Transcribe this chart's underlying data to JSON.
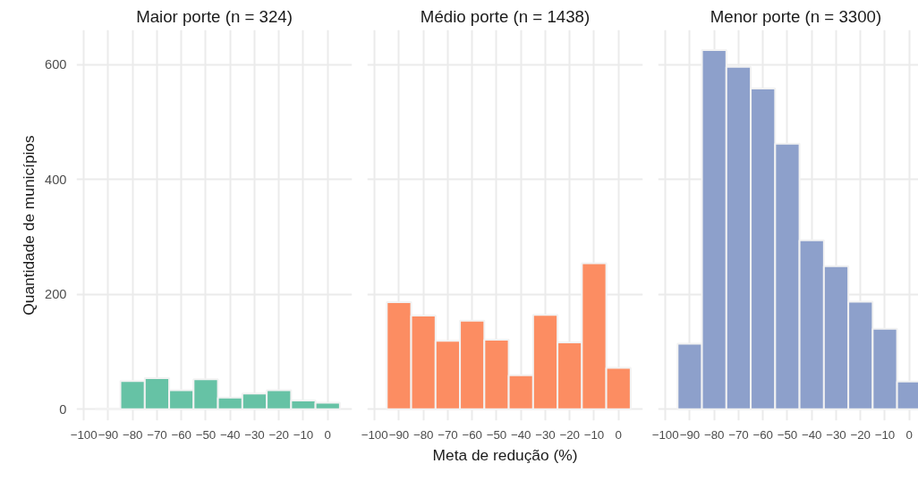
{
  "chart_data": [
    {
      "type": "histogram",
      "title": "Maior porte (n = 324)",
      "ylabel": "Quantidade de municípios",
      "bins": [
        -95,
        -85,
        -75,
        -65,
        -55,
        -45,
        -35,
        -25,
        -15,
        -5,
        5
      ],
      "values": [
        1,
        49,
        54,
        33,
        52,
        20,
        27,
        33,
        15,
        11
      ],
      "color": "#66c2a5",
      "xlim": [
        -103,
        10
      ],
      "ylim": [
        -20,
        660
      ],
      "xticks": [
        -100,
        -90,
        -80,
        -70,
        -60,
        -50,
        -40,
        -30,
        -20,
        -10,
        0
      ],
      "yticks": [
        0,
        200,
        400,
        600
      ],
      "grid": true
    },
    {
      "type": "histogram",
      "title": "Médio porte (n = 1438)",
      "xlabel": "Meta de redução (%)",
      "bins": [
        -95,
        -85,
        -75,
        -65,
        -55,
        -45,
        -35,
        -25,
        -15,
        -5,
        5
      ],
      "values": [
        186,
        163,
        119,
        154,
        121,
        59,
        164,
        116,
        254,
        72
      ],
      "color": "#fc8d62",
      "xlim": [
        -103,
        10
      ],
      "ylim": [
        -20,
        660
      ],
      "xticks": [
        -100,
        -90,
        -80,
        -70,
        -60,
        -50,
        -40,
        -30,
        -20,
        -10,
        0
      ],
      "yticks": [
        0,
        200,
        400,
        600
      ],
      "grid": true,
      "tick_labels": "x"
    },
    {
      "type": "histogram",
      "title": "Menor porte (n = 3300)",
      "bins": [
        -95,
        -85,
        -75,
        -65,
        -55,
        -45,
        -35,
        -25,
        -15,
        -5,
        5
      ],
      "values": [
        114,
        625,
        596,
        558,
        462,
        294,
        249,
        187,
        140,
        48
      ],
      "color": "#8da0cb",
      "xlim": [
        -103,
        10
      ],
      "ylim": [
        -20,
        660
      ],
      "xticks": [
        -100,
        -90,
        -80,
        -70,
        -60,
        -50,
        -40,
        -30,
        -20,
        -10,
        0
      ],
      "yticks": [
        0,
        200,
        400,
        600
      ],
      "grid": true,
      "tick_labels": "x"
    }
  ]
}
